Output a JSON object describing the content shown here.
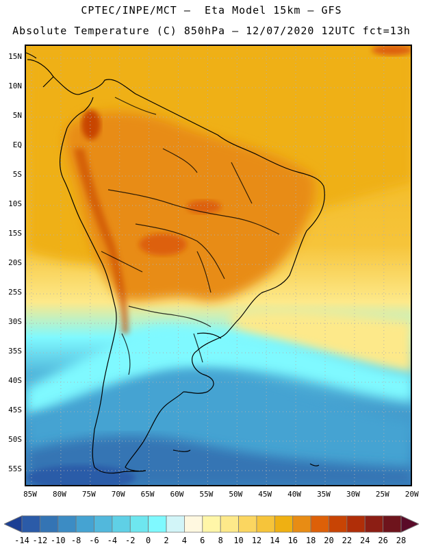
{
  "header": {
    "line1": "CPTEC/INPE/MCT –  Eta Model 15km – GFS",
    "line2": "Absolute Temperature (C) 850hPa – 12/07/2020 12UTC fct=13h"
  },
  "map": {
    "lat_labels": [
      "15N",
      "10N",
      "5N",
      "EQ",
      "5S",
      "10S",
      "15S",
      "20S",
      "25S",
      "30S",
      "35S",
      "40S",
      "45S",
      "50S",
      "55S"
    ],
    "lon_labels": [
      "85W",
      "80W",
      "75W",
      "70W",
      "65W",
      "60W",
      "55W",
      "50W",
      "45W",
      "40W",
      "35W",
      "30W",
      "25W",
      "20W"
    ],
    "lat_range": [
      15,
      -57
    ],
    "lon_range": [
      -85,
      -20
    ]
  },
  "legend": {
    "colors": [
      "#1c3f94",
      "#2b5ba8",
      "#3474b4",
      "#3c8cc4",
      "#45a3d2",
      "#52b8dc",
      "#5fd0e6",
      "#6ee6ef",
      "#7ff9ff",
      "#d2f5f8",
      "#fff8e0",
      "#fff6a8",
      "#fde98a",
      "#fbd660",
      "#f6c43a",
      "#efb012",
      "#e88c14",
      "#dd6008",
      "#c84404",
      "#b02e08",
      "#8c1e14",
      "#6e141c",
      "#5a0a28"
    ],
    "labels": [
      "-14",
      "-12",
      "-10",
      "-8",
      "-6",
      "-4",
      "-2",
      "0",
      "2",
      "4",
      "6",
      "8",
      "10",
      "12",
      "14",
      "16",
      "18",
      "20",
      "22",
      "24",
      "26",
      "28"
    ]
  }
}
